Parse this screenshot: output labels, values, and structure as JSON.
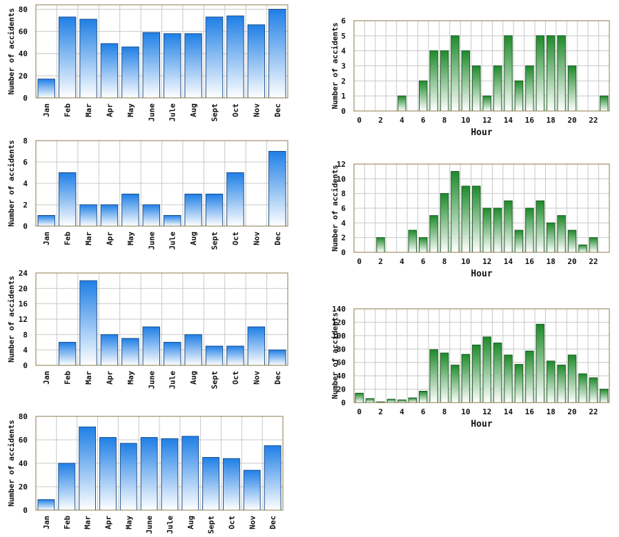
{
  "colors": {
    "blue_top": "#1f7fe6",
    "blue_bottom": "#ffffff",
    "green_top": "#1e8a2a",
    "green_bottom": "#ffffff",
    "grid": "#c8c8c8",
    "frame": "#8a7a4a"
  },
  "chart_data": [
    {
      "id": "month-1",
      "type": "bar",
      "ylabel": "Number of accidents",
      "xlabel": "",
      "categories": [
        "Jan",
        "Feb",
        "Mar",
        "Apr",
        "May",
        "June",
        "Jule",
        "Aug",
        "Sept",
        "Oct",
        "Nov",
        "Dec"
      ],
      "values": [
        17,
        73,
        71,
        49,
        46,
        59,
        58,
        58,
        73,
        74,
        66,
        80
      ],
      "ylim": [
        0,
        84
      ],
      "yticks": [
        0,
        20,
        40,
        60,
        80
      ],
      "color": "blue",
      "grid": true
    },
    {
      "id": "month-2",
      "type": "bar",
      "ylabel": "Number of accidents",
      "xlabel": "",
      "categories": [
        "Jan",
        "Feb",
        "Mar",
        "Apr",
        "May",
        "June",
        "Jule",
        "Aug",
        "Sept",
        "Oct",
        "Nov",
        "Dec"
      ],
      "values": [
        1,
        5,
        2,
        2,
        3,
        2,
        1,
        3,
        3,
        5,
        0,
        7
      ],
      "ylim": [
        0,
        8
      ],
      "yticks": [
        0,
        2,
        4,
        6,
        8
      ],
      "color": "blue",
      "grid": true
    },
    {
      "id": "month-3",
      "type": "bar",
      "ylabel": "Number of accidents",
      "xlabel": "",
      "categories": [
        "Jan",
        "Feb",
        "Mar",
        "Apr",
        "May",
        "June",
        "Jule",
        "Aug",
        "Sept",
        "Oct",
        "Nov",
        "Dec"
      ],
      "values": [
        0,
        6,
        22,
        8,
        7,
        10,
        6,
        8,
        5,
        5,
        10,
        4
      ],
      "ylim": [
        0,
        24
      ],
      "yticks": [
        0,
        4,
        8,
        12,
        16,
        20,
        24
      ],
      "color": "blue",
      "grid": true
    },
    {
      "id": "month-4",
      "type": "bar",
      "ylabel": "Number of accidents",
      "xlabel": "",
      "categories": [
        "Jan",
        "Feb",
        "Mar",
        "Apr",
        "May",
        "June",
        "Jule",
        "Aug",
        "Sept",
        "Oct",
        "Nov",
        "Dec"
      ],
      "values": [
        9,
        40,
        71,
        62,
        57,
        62,
        61,
        63,
        45,
        44,
        34,
        55
      ],
      "ylim": [
        0,
        80
      ],
      "yticks": [
        0,
        20,
        40,
        60,
        80
      ],
      "color": "blue",
      "grid": true
    },
    {
      "id": "hour-1",
      "type": "bar",
      "ylabel": "Number of accidents",
      "xlabel": "Hour",
      "categories": [
        0,
        1,
        2,
        3,
        4,
        5,
        6,
        7,
        8,
        9,
        10,
        11,
        12,
        13,
        14,
        15,
        16,
        17,
        18,
        19,
        20,
        21,
        22,
        23
      ],
      "values": [
        0,
        0,
        0,
        0,
        1,
        0,
        2,
        4,
        4,
        5,
        4,
        3,
        1,
        3,
        5,
        2,
        3,
        5,
        5,
        5,
        3,
        0,
        0,
        1
      ],
      "xticks": [
        0,
        2,
        4,
        6,
        8,
        10,
        12,
        14,
        16,
        18,
        20,
        22
      ],
      "ylim": [
        0,
        6
      ],
      "yticks": [
        0,
        1,
        2,
        3,
        4,
        5,
        6
      ],
      "color": "green",
      "grid": true
    },
    {
      "id": "hour-2",
      "type": "bar",
      "ylabel": "Number of accidents",
      "xlabel": "Hour",
      "categories": [
        0,
        1,
        2,
        3,
        4,
        5,
        6,
        7,
        8,
        9,
        10,
        11,
        12,
        13,
        14,
        15,
        16,
        17,
        18,
        19,
        20,
        21,
        22,
        23
      ],
      "values": [
        0,
        0,
        2,
        0,
        0,
        3,
        2,
        5,
        8,
        11,
        9,
        9,
        6,
        6,
        7,
        3,
        6,
        7,
        4,
        5,
        3,
        1,
        2,
        0
      ],
      "xticks": [
        0,
        2,
        4,
        6,
        8,
        10,
        12,
        14,
        16,
        18,
        20,
        22
      ],
      "ylim": [
        0,
        12
      ],
      "yticks": [
        0,
        2,
        4,
        6,
        8,
        10,
        12
      ],
      "color": "green",
      "grid": true
    },
    {
      "id": "hour-3",
      "type": "bar",
      "ylabel": "Number of accidents",
      "xlabel": "Hour",
      "categories": [
        0,
        1,
        2,
        3,
        4,
        5,
        6,
        7,
        8,
        9,
        10,
        11,
        12,
        13,
        14,
        15,
        16,
        17,
        18,
        19,
        20,
        21,
        22,
        23
      ],
      "values": [
        14,
        6,
        1,
        5,
        4,
        7,
        17,
        79,
        74,
        56,
        72,
        86,
        98,
        89,
        71,
        57,
        77,
        117,
        62,
        56,
        71,
        43,
        37,
        20
      ],
      "xticks": [
        0,
        2,
        4,
        6,
        8,
        10,
        12,
        14,
        16,
        18,
        20,
        22
      ],
      "ylim": [
        0,
        140
      ],
      "yticks": [
        0,
        20,
        40,
        60,
        80,
        100,
        120,
        140
      ],
      "color": "green",
      "grid": true
    }
  ]
}
